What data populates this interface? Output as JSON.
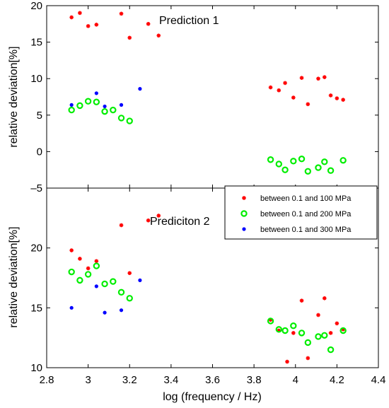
{
  "chart_data": [
    {
      "type": "scatter",
      "title": "Prediction 1",
      "xlabel": "",
      "ylabel": "relative deviation[%]",
      "xlim": [
        2.8,
        4.4
      ],
      "ylim": [
        -5,
        20
      ],
      "y_ticks": [
        "–5",
        "0",
        "5",
        "10",
        "15",
        "20"
      ],
      "series": [
        {
          "name": "between 0.1 and 100 MPa",
          "color": "#ff0000",
          "marker": "asterisk",
          "points": [
            [
              2.92,
              18.4
            ],
            [
              2.96,
              19.0
            ],
            [
              3.0,
              17.2
            ],
            [
              3.04,
              17.4
            ],
            [
              3.16,
              18.9
            ],
            [
              3.2,
              15.6
            ],
            [
              3.29,
              17.5
            ],
            [
              3.34,
              15.9
            ],
            [
              3.88,
              8.8
            ],
            [
              3.92,
              8.4
            ],
            [
              3.95,
              9.4
            ],
            [
              3.99,
              7.4
            ],
            [
              4.03,
              10.1
            ],
            [
              4.06,
              6.5
            ],
            [
              4.11,
              10.0
            ],
            [
              4.14,
              10.2
            ],
            [
              4.17,
              7.7
            ],
            [
              4.2,
              7.3
            ],
            [
              4.23,
              7.1
            ]
          ]
        },
        {
          "name": "between 0.1 and 200 MPa",
          "color": "#00ee00",
          "marker": "circle",
          "points": [
            [
              2.92,
              5.7
            ],
            [
              2.96,
              6.3
            ],
            [
              3.0,
              6.9
            ],
            [
              3.04,
              6.8
            ],
            [
              3.08,
              5.5
            ],
            [
              3.12,
              5.7
            ],
            [
              3.16,
              4.6
            ],
            [
              3.2,
              4.2
            ],
            [
              3.88,
              -1.1
            ],
            [
              3.92,
              -1.7
            ],
            [
              3.95,
              -2.5
            ],
            [
              3.99,
              -1.3
            ],
            [
              4.03,
              -1.0
            ],
            [
              4.06,
              -2.7
            ],
            [
              4.11,
              -2.2
            ],
            [
              4.14,
              -1.4
            ],
            [
              4.17,
              -2.6
            ],
            [
              4.23,
              -1.2
            ]
          ]
        },
        {
          "name": "between 0.1 and 300 MPa",
          "color": "#0000ff",
          "marker": "dot",
          "points": [
            [
              2.92,
              6.4
            ],
            [
              3.04,
              8.0
            ],
            [
              3.08,
              6.2
            ],
            [
              3.16,
              6.4
            ],
            [
              3.25,
              8.6
            ]
          ]
        }
      ]
    },
    {
      "type": "scatter",
      "title": "Prediciton 2",
      "xlabel": "log (frequency / Hz)",
      "ylabel": "relative deviation[%]",
      "xlim": [
        2.8,
        4.4
      ],
      "ylim": [
        10,
        25
      ],
      "x_ticks": [
        "2.8",
        "3",
        "3.2",
        "3.4",
        "3.6",
        "3.8",
        "4",
        "4.2",
        "4.4"
      ],
      "y_ticks": [
        "10",
        "15",
        "20"
      ],
      "series": [
        {
          "name": "between 0.1 and 100 MPa",
          "color": "#ff0000",
          "marker": "asterisk",
          "points": [
            [
              2.92,
              19.8
            ],
            [
              2.96,
              19.1
            ],
            [
              3.0,
              18.3
            ],
            [
              3.04,
              18.9
            ],
            [
              3.16,
              21.9
            ],
            [
              3.2,
              17.9
            ],
            [
              3.29,
              22.3
            ],
            [
              3.34,
              22.7
            ],
            [
              3.88,
              14.0
            ],
            [
              3.92,
              13.1
            ],
            [
              3.96,
              10.5
            ],
            [
              3.99,
              12.9
            ],
            [
              4.03,
              15.6
            ],
            [
              4.06,
              10.8
            ],
            [
              4.11,
              14.4
            ],
            [
              4.14,
              15.8
            ],
            [
              4.17,
              12.9
            ],
            [
              4.2,
              13.7
            ],
            [
              4.23,
              13.2
            ]
          ]
        },
        {
          "name": "between 0.1 and 200 MPa",
          "color": "#00ee00",
          "marker": "circle",
          "points": [
            [
              2.92,
              18.0
            ],
            [
              2.96,
              17.3
            ],
            [
              3.0,
              17.8
            ],
            [
              3.04,
              18.5
            ],
            [
              3.08,
              17.0
            ],
            [
              3.12,
              17.2
            ],
            [
              3.16,
              16.3
            ],
            [
              3.2,
              15.8
            ],
            [
              3.88,
              13.9
            ],
            [
              3.92,
              13.2
            ],
            [
              3.95,
              13.1
            ],
            [
              3.99,
              13.5
            ],
            [
              4.03,
              12.9
            ],
            [
              4.06,
              12.1
            ],
            [
              4.11,
              12.6
            ],
            [
              4.14,
              12.7
            ],
            [
              4.17,
              11.5
            ],
            [
              4.23,
              13.1
            ]
          ]
        },
        {
          "name": "between 0.1 and 300 MPa",
          "color": "#0000ff",
          "marker": "dot",
          "points": [
            [
              2.92,
              15.0
            ],
            [
              3.04,
              16.8
            ],
            [
              3.08,
              14.6
            ],
            [
              3.16,
              14.8
            ],
            [
              3.25,
              17.3
            ]
          ]
        }
      ]
    }
  ],
  "legend": {
    "placement": "top-right",
    "entries": [
      "between 0.1 and 100 MPa",
      "between 0.1 and 200 MPa",
      "between 0.1 and 300 MPa"
    ]
  }
}
